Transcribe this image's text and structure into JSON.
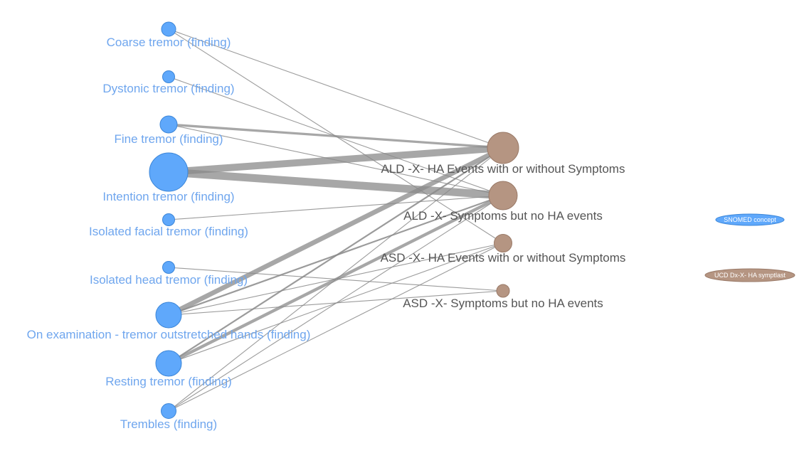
{
  "colors": {
    "snomed_node": "#5fa8fb",
    "snomed_stroke": "#3c86d8",
    "ucd_node": "#b59582",
    "ucd_stroke": "#9a7a68",
    "edge": "#8a8a8a"
  },
  "left_nodes": [
    {
      "id": "coarse",
      "label": "Coarse tremor (finding)",
      "weight": 1
    },
    {
      "id": "dystonic",
      "label": "Dystonic tremor (finding)",
      "weight": 0.6
    },
    {
      "id": "fine",
      "label": "Fine tremor (finding)",
      "weight": 1.5
    },
    {
      "id": "intention",
      "label": "Intention tremor (finding)",
      "weight": 10
    },
    {
      "id": "isofacial",
      "label": "Isolated facial tremor (finding)",
      "weight": 0.8
    },
    {
      "id": "isohead",
      "label": "Isolated head tremor (finding)",
      "weight": 0.8
    },
    {
      "id": "onexam",
      "label": "On examination - tremor outstretched hands (finding)",
      "weight": 4.5
    },
    {
      "id": "resting",
      "label": "Resting tremor (finding)",
      "weight": 4.5
    },
    {
      "id": "trembles",
      "label": "Trembles (finding)",
      "weight": 1.2
    }
  ],
  "right_nodes": [
    {
      "id": "ald_ha",
      "label": "ALD -X- HA Events with or without Symptoms",
      "weight": 6
    },
    {
      "id": "ald_sym",
      "label": "ALD -X- Symptoms but no HA events",
      "weight": 5
    },
    {
      "id": "asd_ha",
      "label": "ASD -X- HA Events with or without Symptoms",
      "weight": 1.8
    },
    {
      "id": "asd_sym",
      "label": "ASD -X- Symptoms but no HA events",
      "weight": 1
    }
  ],
  "edges": [
    {
      "from": "coarse",
      "to": "ald_ha",
      "weight": 1
    },
    {
      "from": "coarse",
      "to": "asd_ha",
      "weight": 1
    },
    {
      "from": "dystonic",
      "to": "ald_sym",
      "weight": 1
    },
    {
      "from": "fine",
      "to": "ald_ha",
      "weight": 3
    },
    {
      "from": "fine",
      "to": "ald_sym",
      "weight": 1
    },
    {
      "from": "intention",
      "to": "ald_ha",
      "weight": 9
    },
    {
      "from": "intention",
      "to": "ald_sym",
      "weight": 10
    },
    {
      "from": "isofacial",
      "to": "ald_sym",
      "weight": 1
    },
    {
      "from": "isohead",
      "to": "asd_sym",
      "weight": 1
    },
    {
      "from": "onexam",
      "to": "ald_ha",
      "weight": 6
    },
    {
      "from": "onexam",
      "to": "ald_sym",
      "weight": 2
    },
    {
      "from": "onexam",
      "to": "asd_ha",
      "weight": 1
    },
    {
      "from": "onexam",
      "to": "asd_sym",
      "weight": 1
    },
    {
      "from": "resting",
      "to": "ald_ha",
      "weight": 2
    },
    {
      "from": "resting",
      "to": "ald_sym",
      "weight": 4
    },
    {
      "from": "resting",
      "to": "asd_ha",
      "weight": 1
    },
    {
      "from": "trembles",
      "to": "ald_ha",
      "weight": 1
    },
    {
      "from": "trembles",
      "to": "ald_sym",
      "weight": 1
    },
    {
      "from": "trembles",
      "to": "asd_ha",
      "weight": 1
    }
  ],
  "legend": [
    {
      "id": "snomed",
      "label": "SNOMED concept"
    },
    {
      "id": "ucd",
      "label": "UCD Dx-X- HA symptlast"
    }
  ]
}
